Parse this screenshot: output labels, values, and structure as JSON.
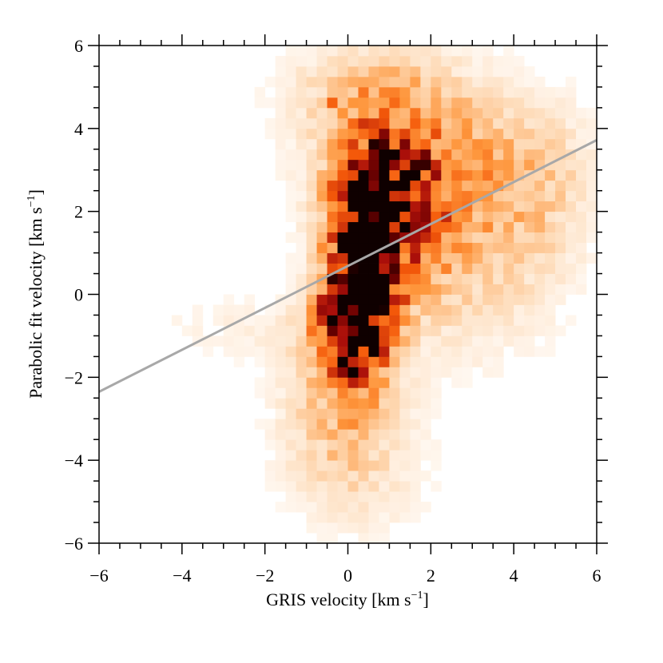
{
  "chart_data": {
    "type": "heatmap",
    "title": "",
    "xlabel": "GRIS velocity [km s",
    "xlabel_sup": "−1",
    "xlabel_end": "]",
    "ylabel": "Parabolic fit velocity [km s",
    "ylabel_sup": "−1",
    "ylabel_end": "]",
    "xlim": [
      -6,
      6
    ],
    "ylim": [
      -6,
      6
    ],
    "xticks": [
      -6,
      -4,
      -2,
      0,
      2,
      4,
      6
    ],
    "yticks": [
      -6,
      -4,
      -2,
      0,
      2,
      4,
      6
    ],
    "xtick_labels": [
      "−6",
      "−4",
      "−2",
      "0",
      "2",
      "4",
      "6"
    ],
    "ytick_labels": [
      "−6",
      "−4",
      "−2",
      "0",
      "2",
      "4",
      "6"
    ],
    "bin_size": 0.25,
    "colormap": "gist_heat_r",
    "grid": false,
    "fit_line": {
      "x": [
        -6,
        6
      ],
      "y": [
        -2.35,
        3.72
      ],
      "color": "#a8a8a8"
    },
    "blobs": [
      {
        "x": 0.3,
        "y": 0.8,
        "sx": 0.55,
        "sy": 1.7,
        "w": 1.0
      },
      {
        "x": 0.0,
        "y": -0.8,
        "sx": 0.6,
        "sy": 0.9,
        "w": 0.75
      },
      {
        "x": 1.2,
        "y": 2.0,
        "sx": 0.8,
        "sy": 1.4,
        "w": 0.55
      },
      {
        "x": 1.6,
        "y": 3.3,
        "sx": 1.6,
        "sy": 1.3,
        "w": 0.35
      },
      {
        "x": 2.8,
        "y": 1.2,
        "sx": 1.6,
        "sy": 1.8,
        "w": 0.25
      },
      {
        "x": -0.2,
        "y": -2.8,
        "sx": 1.0,
        "sy": 1.2,
        "w": 0.25
      },
      {
        "x": -2.5,
        "y": -0.8,
        "sx": 1.6,
        "sy": 0.6,
        "w": 0.08
      },
      {
        "x": 0.3,
        "y": -4.5,
        "sx": 1.2,
        "sy": 1.0,
        "w": 0.12
      },
      {
        "x": 4.5,
        "y": 2.8,
        "sx": 1.0,
        "sy": 1.3,
        "w": 0.18
      },
      {
        "x": 0.5,
        "y": 5.0,
        "sx": 1.4,
        "sy": 0.7,
        "w": 0.2
      }
    ],
    "hot_bins": [
      [
        0.25,
        0.75,
        1.0
      ],
      [
        0.5,
        0.75,
        0.95
      ],
      [
        0.0,
        0.75,
        0.85
      ],
      [
        0.5,
        1.5,
        0.95
      ],
      [
        0.25,
        1.5,
        0.85
      ],
      [
        1.0,
        0.75,
        0.85
      ],
      [
        0.75,
        0.75,
        0.8
      ],
      [
        -0.5,
        0.75,
        0.75
      ],
      [
        -0.5,
        -0.5,
        0.8
      ],
      [
        -0.25,
        -0.5,
        0.8
      ],
      [
        0.0,
        -1.25,
        0.9
      ],
      [
        -0.25,
        -1.25,
        0.8
      ],
      [
        0.0,
        -1.75,
        0.75
      ],
      [
        0.0,
        -2.0,
        0.8
      ],
      [
        1.25,
        3.25,
        0.8
      ],
      [
        1.5,
        3.25,
        0.75
      ],
      [
        0.75,
        1.75,
        0.7
      ],
      [
        1.0,
        1.75,
        0.75
      ],
      [
        -0.5,
        0.0,
        0.7
      ],
      [
        0.25,
        0.0,
        0.7
      ],
      [
        0.75,
        0.0,
        0.65
      ],
      [
        1.25,
        -0.25,
        0.7
      ],
      [
        -0.75,
        -0.5,
        0.65
      ],
      [
        0.5,
        -0.75,
        0.65
      ],
      [
        0.0,
        2.25,
        0.6
      ],
      [
        -0.5,
        4.5,
        0.6
      ],
      [
        -0.25,
        2.0,
        0.55
      ],
      [
        1.5,
        1.5,
        0.6
      ],
      [
        -0.5,
        1.25,
        0.55
      ],
      [
        0.25,
        1.0,
        0.85
      ],
      [
        0.0,
        0.25,
        0.65
      ],
      [
        -0.25,
        -1.0,
        0.7
      ]
    ]
  }
}
